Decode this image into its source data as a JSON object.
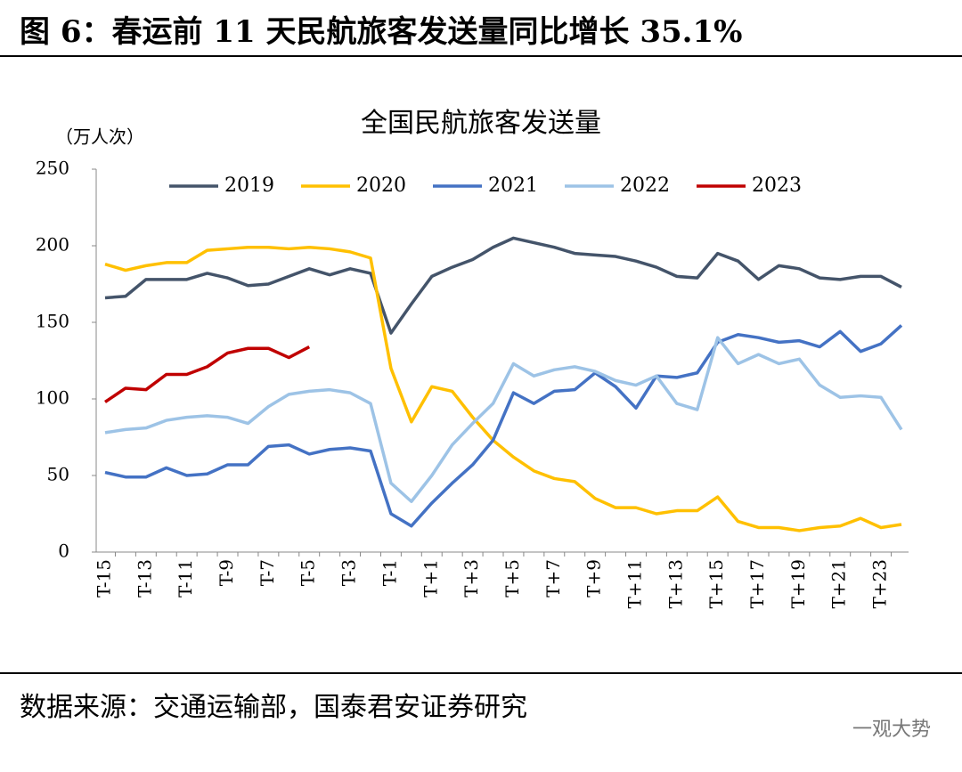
{
  "header": {
    "title": "图 6：春运前 11 天民航旅客发送量同比增长 35.1%"
  },
  "chart_data": {
    "type": "line",
    "title": "全国民航旅客发送量",
    "y_label": "（万人次）",
    "categories": [
      "T-15",
      null,
      "T-13",
      null,
      "T-11",
      null,
      "T-9",
      null,
      "T-7",
      null,
      "T-5",
      null,
      "T-3",
      null,
      "T-1",
      null,
      "T+1",
      null,
      "T+3",
      null,
      "T+5",
      null,
      "T+7",
      null,
      "T+9",
      null,
      "T+11",
      null,
      "T+13",
      null,
      "T+15",
      null,
      "T+17",
      null,
      "T+19",
      null,
      "T+21",
      null,
      "T+23",
      null
    ],
    "series": [
      {
        "name": "2019",
        "color": "#44546a",
        "values": [
          166,
          167,
          178,
          178,
          178,
          182,
          179,
          174,
          175,
          180,
          185,
          181,
          185,
          182,
          143,
          162,
          180,
          186,
          191,
          199,
          205,
          202,
          199,
          195,
          194,
          193,
          190,
          186,
          180,
          179,
          195,
          190,
          178,
          187,
          185,
          179,
          178,
          180,
          180,
          173
        ]
      },
      {
        "name": "2020",
        "color": "#ffc000",
        "values": [
          188,
          184,
          187,
          189,
          189,
          197,
          198,
          199,
          199,
          198,
          199,
          198,
          196,
          192,
          120,
          85,
          108,
          105,
          88,
          73,
          62,
          53,
          48,
          46,
          35,
          29,
          29,
          25,
          27,
          27,
          36,
          20,
          16,
          16,
          14,
          16,
          17,
          22,
          16,
          18
        ]
      },
      {
        "name": "2021",
        "color": "#4472c4",
        "values": [
          52,
          49,
          49,
          55,
          50,
          51,
          57,
          57,
          69,
          70,
          64,
          67,
          68,
          66,
          25,
          17,
          32,
          45,
          57,
          73,
          104,
          97,
          105,
          106,
          117,
          108,
          94,
          115,
          114,
          117,
          137,
          142,
          140,
          137,
          138,
          134,
          144,
          131,
          136,
          148
        ]
      },
      {
        "name": "2022",
        "color": "#9dc3e6",
        "values": [
          78,
          80,
          81,
          86,
          88,
          89,
          88,
          84,
          95,
          103,
          105,
          106,
          104,
          97,
          45,
          33,
          50,
          70,
          84,
          97,
          123,
          115,
          119,
          121,
          118,
          112,
          109,
          115,
          97,
          93,
          140,
          123,
          129,
          123,
          126,
          109,
          101,
          102,
          101,
          80
        ]
      },
      {
        "name": "2023",
        "color": "#c00000",
        "values": [
          98,
          107,
          106,
          116,
          116,
          121,
          130,
          133,
          133,
          127,
          134,
          null,
          null,
          null,
          null,
          null,
          null,
          null,
          null,
          null,
          null,
          null,
          null,
          null,
          null,
          null,
          null,
          null,
          null,
          null,
          null,
          null,
          null,
          null,
          null,
          null,
          null,
          null,
          null,
          null
        ]
      }
    ],
    "ylim": [
      0,
      250
    ],
    "yticks": [
      0,
      50,
      100,
      150,
      200,
      250
    ]
  },
  "footer": {
    "source": "数据来源：交通运输部，国泰君安证券研究",
    "watermark": "一观大势"
  }
}
